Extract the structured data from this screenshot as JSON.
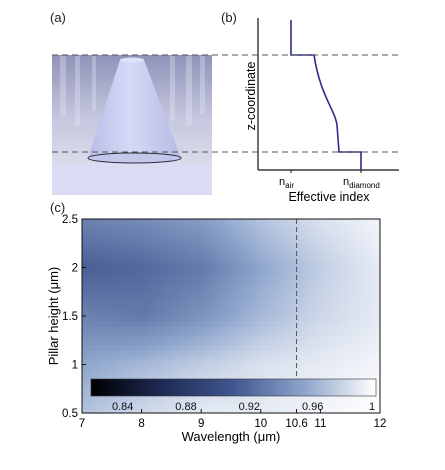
{
  "panel_a": {
    "label": "(a)"
  },
  "panel_b": {
    "label": "(b)",
    "ylabel": "z-coordinate",
    "xlabel": "Effective index",
    "tick_air_main": "n",
    "tick_air_sub": "air",
    "tick_diamond_main": "n",
    "tick_diamond_sub": "diamond"
  },
  "panel_c": {
    "label": "(c)"
  },
  "colors": {
    "profile_line": "#2b2b8c",
    "dashed_line": "#555555",
    "cone_body": "#c9cdf0",
    "substrate": "#d9dcf3"
  },
  "chart_data": {
    "type": "heatmap",
    "xlabel": "Wavelength (μm)",
    "ylabel": "Pillar height (μm)",
    "xlim": [
      7,
      12
    ],
    "ylim": [
      0.5,
      2.5
    ],
    "xticks": [
      7,
      8,
      9,
      10,
      10.6,
      11,
      12
    ],
    "xtick_labels": [
      "7",
      "8",
      "9",
      "10",
      "10.6",
      "11",
      "12"
    ],
    "yticks": [
      0.5,
      1,
      1.5,
      2,
      2.5
    ],
    "ytick_labels": [
      "0.5",
      "1",
      "1.5",
      "2",
      "2.5"
    ],
    "colorbar": {
      "range": [
        0.82,
        1.0
      ],
      "ticks": [
        0.84,
        0.88,
        0.92,
        0.96,
        1
      ],
      "tick_labels": [
        "0.84",
        "0.88",
        "0.92",
        "0.96",
        "1"
      ]
    },
    "marker_line_x": 10.6,
    "x_grid": [
      7,
      8,
      9,
      10,
      11,
      12
    ],
    "y_grid": [
      0.5,
      1,
      1.5,
      2,
      2.5
    ],
    "values": [
      [
        0.97,
        0.98,
        0.99,
        0.99,
        0.995,
        1.0
      ],
      [
        0.955,
        0.965,
        0.975,
        0.985,
        0.99,
        0.995
      ],
      [
        0.935,
        0.93,
        0.945,
        0.965,
        0.98,
        0.99
      ],
      [
        0.915,
        0.92,
        0.93,
        0.955,
        0.975,
        0.99
      ],
      [
        0.935,
        0.94,
        0.95,
        0.97,
        0.985,
        0.995
      ]
    ]
  }
}
